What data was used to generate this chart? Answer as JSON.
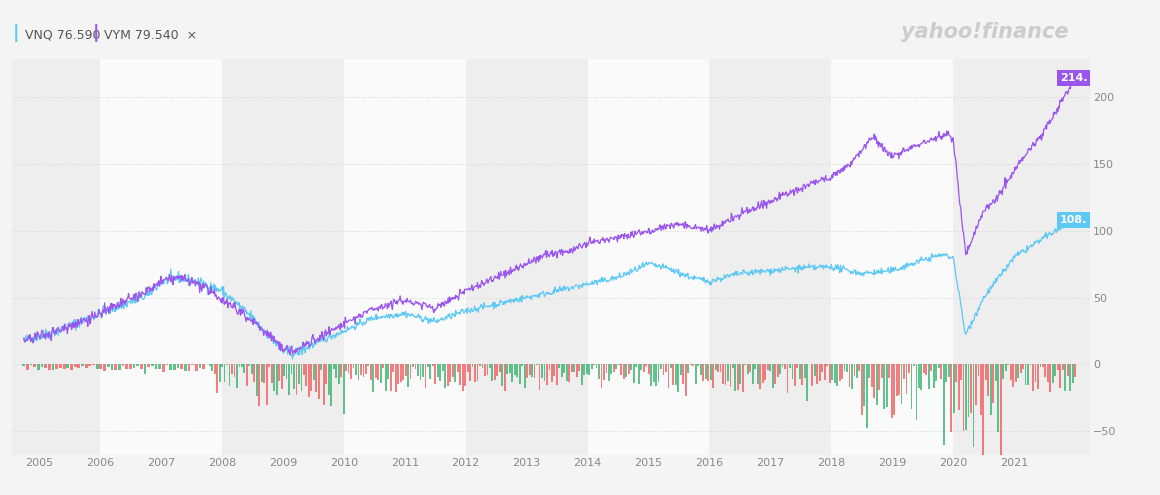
{
  "title_vnq": "VNQ 76.590",
  "title_vym": "VYM 79.540",
  "vnq_color": "#5bc8f5",
  "vym_color": "#9955ee",
  "bar_color_red": "#f06060",
  "bar_color_green": "#3cb371",
  "background_color": "#f4f4f4",
  "panel_bg_light": "#eeeeee",
  "panel_bg_white": "#fafafa",
  "yticks": [
    -50.0,
    0.0,
    50.0,
    100.0,
    150.0,
    200.0
  ],
  "ymin": -68,
  "ymax": 228,
  "vnq_end_label": "108.",
  "vym_end_label": "214.",
  "year_start": 2004.55,
  "year_end": 2022.25,
  "band_boundaries": [
    2004.55,
    2006,
    2008,
    2010,
    2012,
    2014,
    2016,
    2018,
    2020,
    2022.25
  ]
}
